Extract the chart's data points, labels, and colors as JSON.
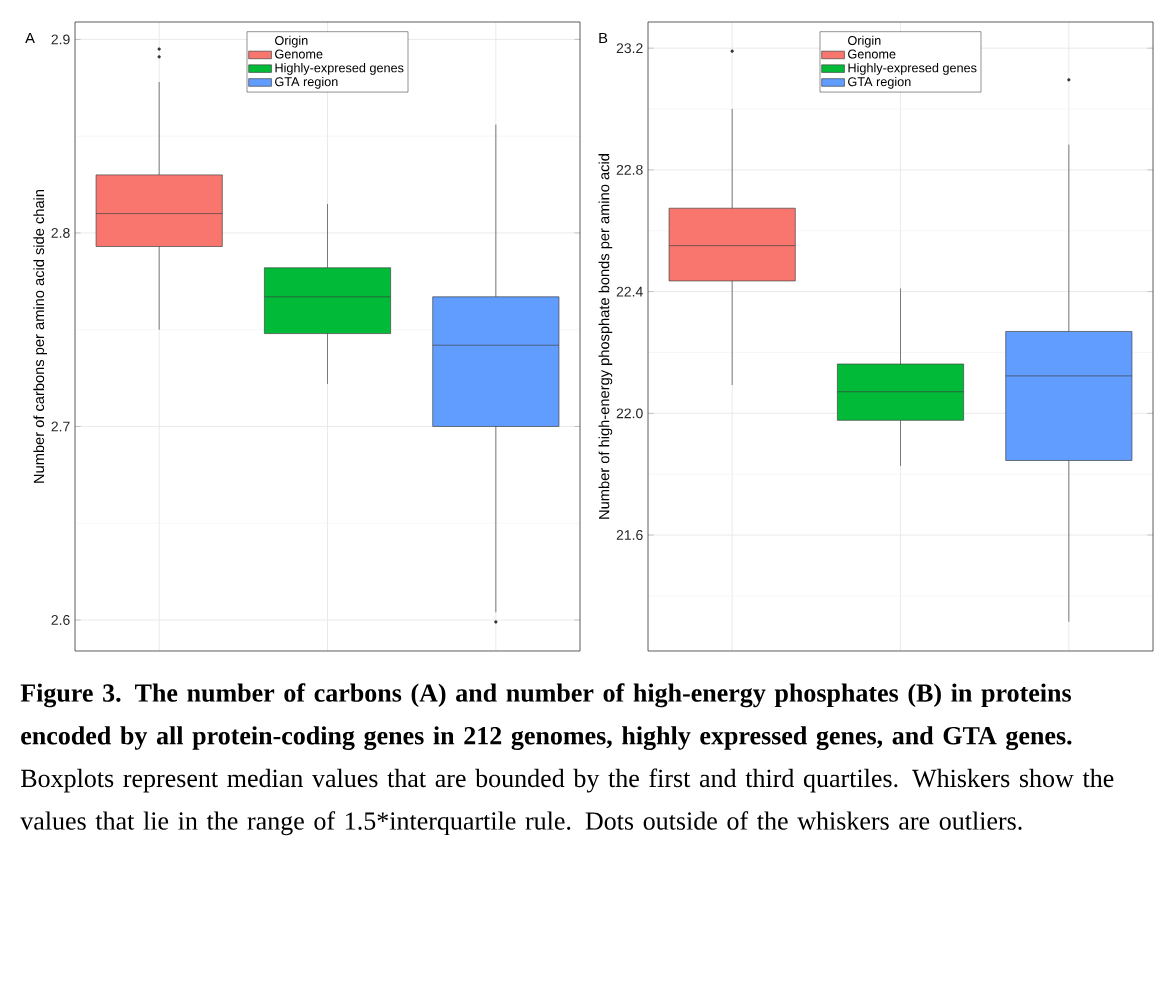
{
  "chart_data": [
    {
      "type": "box",
      "title": "A",
      "ylabel": "Number of carbons per amino acid side chain",
      "categories": [
        null,
        null,
        null
      ],
      "ylim": [
        2.584,
        2.909
      ],
      "yticks": [
        2.6,
        2.7,
        2.8,
        2.9
      ],
      "grid": true,
      "tick_labels": "y",
      "legend": "top",
      "legend_title": "Origin",
      "series": [
        {
          "name": "Genome",
          "color": "#f8766d",
          "boxes": [
            {
              "low": 2.75,
              "q1": 2.793,
              "median": 2.81,
              "q3": 2.83,
              "high": 2.878,
              "outliers": [
                2.891,
                2.895
              ]
            },
            null,
            null
          ]
        },
        {
          "name": "Highly-expresed genes",
          "color": "#00ba38",
          "boxes": [
            null,
            {
              "low": 2.722,
              "q1": 2.748,
              "median": 2.767,
              "q3": 2.782,
              "high": 2.815
            },
            null
          ]
        },
        {
          "name": "GTA region",
          "color": "#619cff",
          "boxes": [
            null,
            null,
            {
              "low": 2.604,
              "q1": 2.7,
              "median": 2.742,
              "q3": 2.767,
              "high": 2.856,
              "outliers": [
                2.599
              ]
            }
          ]
        }
      ],
      "annotations": [
        "**Figure 3. The number of carbons (A) and number of high-energy phosphates (B) in proteins encoded by all protein-coding genes in 212 genomes, highly expressed genes, and GTA genes.** Boxplots represent median values that are bounded by the first and third quartiles. Whiskers show the values that lie in the range of 1.5*interquartile rule. Dots outside of the whiskers are outliers."
      ]
    },
    {
      "type": "box",
      "title": "B",
      "ylabel": "Number of high-energy phosphate bonds per amino acid",
      "categories": [
        null,
        null,
        null
      ],
      "ylim": [
        21.219,
        23.286
      ],
      "yticks": [
        21.6,
        {
          "value": 22.0,
          "label": "22.0"
        },
        22.4,
        22.8,
        23.2
      ],
      "grid": true,
      "tick_labels": "y",
      "legend": "top",
      "legend_title": "Origin",
      "series": [
        {
          "name": "Genome",
          "color": "#f8766d",
          "boxes": [
            {
              "low": 22.093,
              "q1": 22.435,
              "median": 22.551,
              "q3": 22.674,
              "high": 23.0,
              "outliers": [
                23.19
              ]
            },
            null,
            null
          ]
        },
        {
          "name": "Highly-expresed genes",
          "color": "#00ba38",
          "boxes": [
            null,
            {
              "low": 21.827,
              "q1": 21.977,
              "median": 22.071,
              "q3": 22.162,
              "high": 22.41
            },
            null
          ]
        },
        {
          "name": "GTA region",
          "color": "#619cff",
          "boxes": [
            null,
            null,
            {
              "low": 21.315,
              "q1": 21.845,
              "median": 22.123,
              "q3": 22.269,
              "high": 22.883,
              "outliers": [
                23.096
              ]
            }
          ]
        }
      ]
    }
  ]
}
